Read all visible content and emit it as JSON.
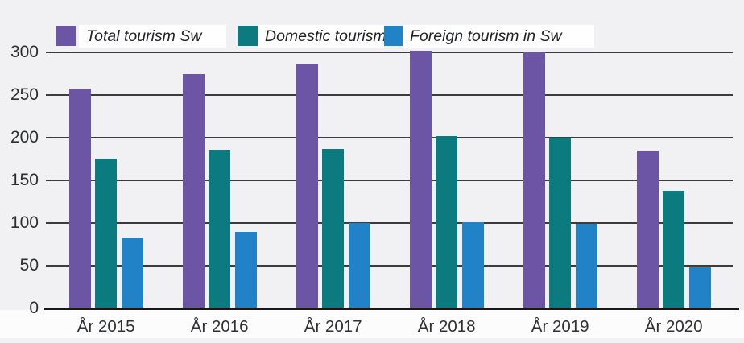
{
  "chart_data": {
    "type": "bar",
    "title": "",
    "categories": [
      "År 2015",
      "År 2016",
      "År 2017",
      "År 2018",
      "År 2019",
      "År 2020"
    ],
    "series": [
      {
        "name": "Total tourism Sw",
        "color": "#6c55a5",
        "values": [
          258,
          275,
          286,
          302,
          300,
          185
        ]
      },
      {
        "name": "Domestic tourism",
        "color": "#0c7b80",
        "values": [
          176,
          186,
          187,
          202,
          200,
          138
        ]
      },
      {
        "name": "Foreign tourism in Sw",
        "color": "#2182c8",
        "values": [
          82,
          90,
          100,
          101,
          99,
          48
        ]
      }
    ],
    "xlabel": "",
    "ylabel": "",
    "ylim": [
      0,
      300
    ],
    "yticks": [
      0,
      50,
      100,
      150,
      200,
      250,
      300
    ],
    "grid": true,
    "legend_position": "top"
  },
  "colors": {
    "background": "#f1f1f4",
    "label_band": "#fcfcfd",
    "legend_chip_bg": "#fefefe",
    "gridline": "#3c3c3c",
    "axis_line": "#191919",
    "text": "#2b2d2f"
  }
}
